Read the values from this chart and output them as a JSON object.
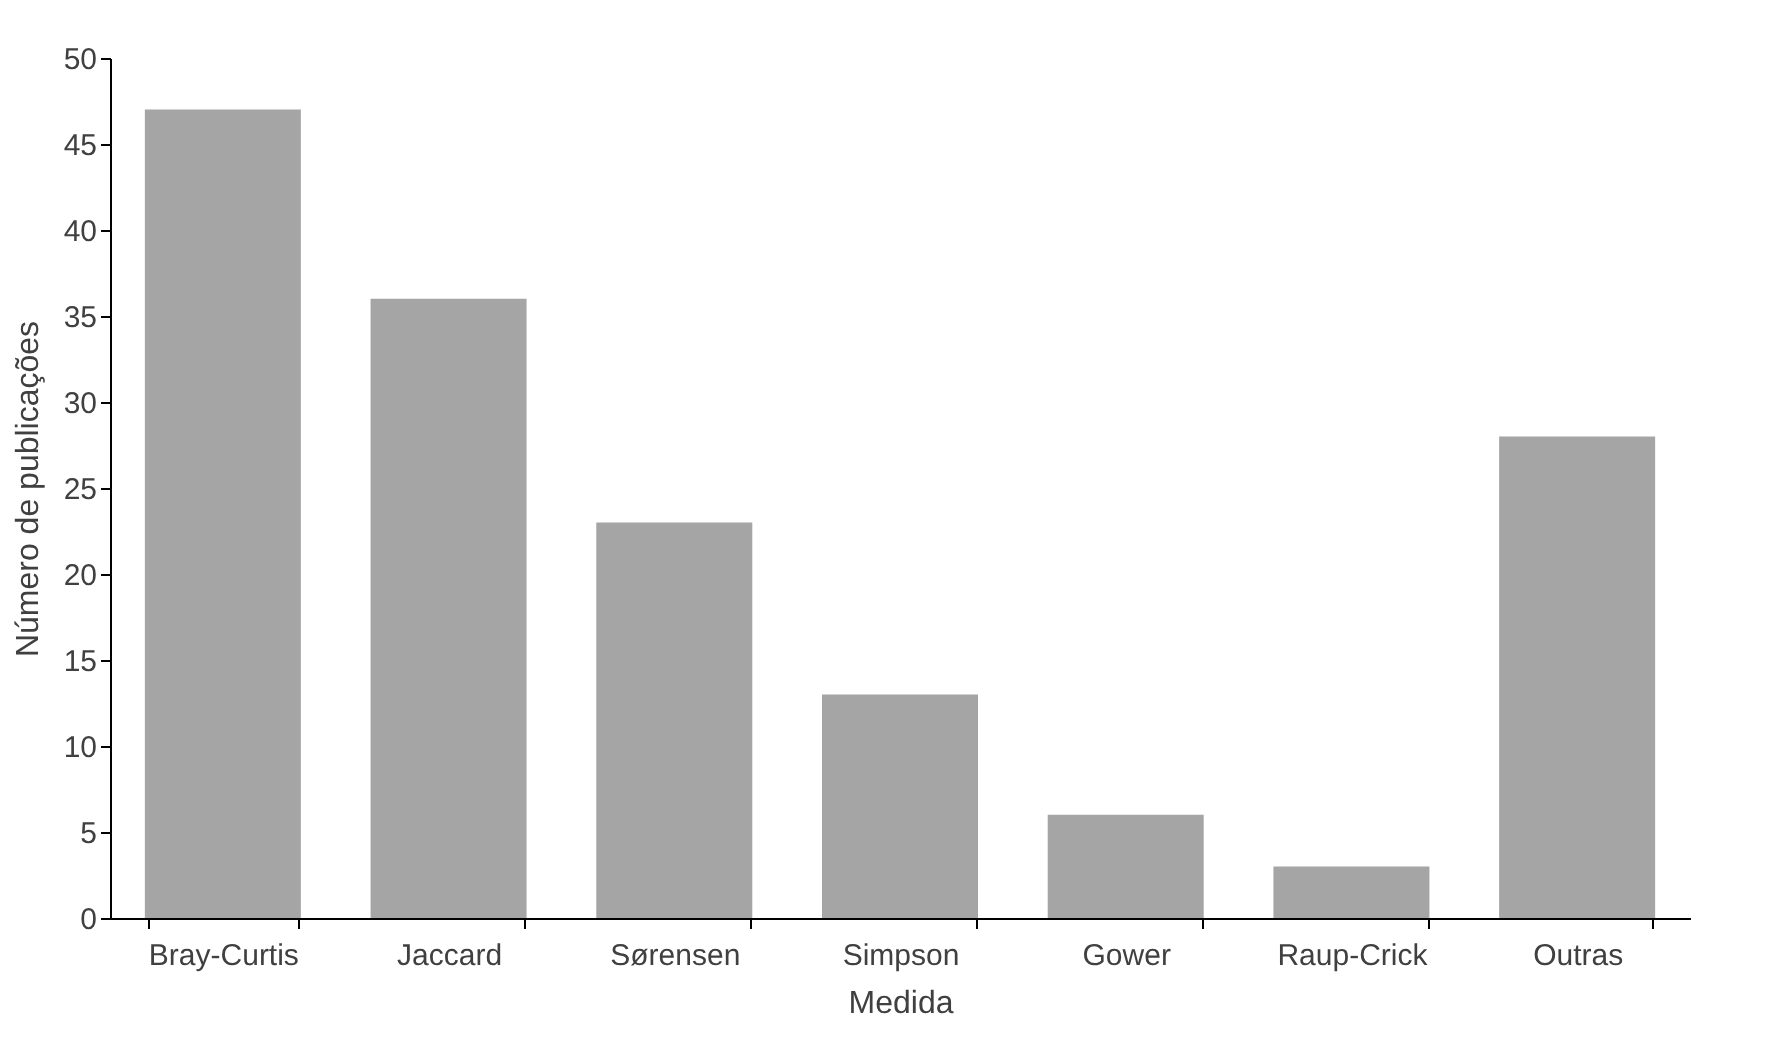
{
  "chart_data": {
    "type": "bar",
    "xlabel": "Medida",
    "ylabel": "Número de publicações",
    "categories": [
      "Bray-Curtis",
      "Jaccard",
      "Sørensen",
      "Simpson",
      "Gower",
      "Raup-Crick",
      "Outras"
    ],
    "values": [
      47,
      36,
      23,
      13,
      6,
      3,
      28
    ],
    "color": "#a5a5a5",
    "ylim": [
      0,
      50
    ],
    "yticks": [
      0,
      5,
      10,
      15,
      20,
      25,
      30,
      35,
      40,
      45,
      50
    ],
    "grid": false
  }
}
